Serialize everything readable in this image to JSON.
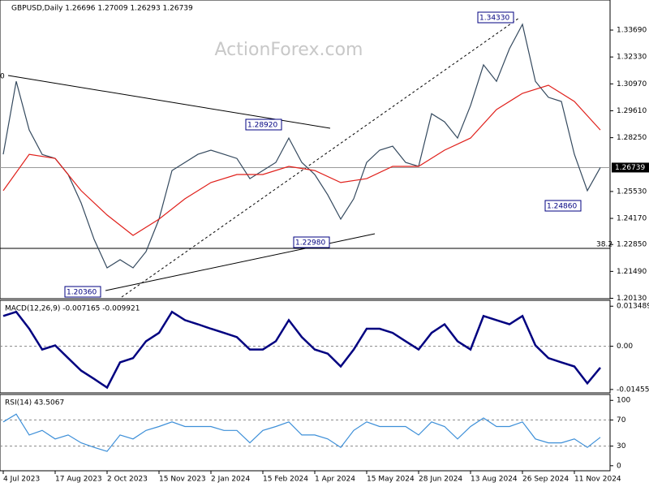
{
  "header": "GBPUSD,Daily  1.26696 1.27009 1.26293 1.26739",
  "watermark": "ActionForex.com",
  "chart_data": [
    {
      "type": "line",
      "title": "GBPUSD,Daily  1.26696 1.27009 1.26293 1.26739",
      "xlim": [
        -2,
        374
      ],
      "ylim": [
        1.2011,
        1.3521
      ],
      "yticks": [
        {
          "value": 1.2013,
          "label": "1.20130"
        },
        {
          "value": 1.2149,
          "label": "1.21490"
        },
        {
          "value": 1.2285,
          "label": "1.22850"
        },
        {
          "value": 1.2417,
          "label": "1.24170"
        },
        {
          "value": 1.2553,
          "label": "1.25530"
        },
        {
          "value": 1.2825,
          "label": "1.28250"
        },
        {
          "value": 1.2961,
          "label": "1.29610"
        },
        {
          "value": 1.3097,
          "label": "1.30970"
        },
        {
          "value": 1.3233,
          "label": "1.32330"
        },
        {
          "value": 1.3369,
          "label": "1.33690"
        }
      ],
      "last_price": {
        "value": 1.26739,
        "label": "1.26739"
      },
      "annotations": [
        "1.34330",
        "1.28920",
        "1.22980",
        "1.20360",
        "1.24860",
        "38.2",
        "0"
      ],
      "series": [
        {
          "color": "#34495e",
          "x": [
            0,
            8,
            16,
            24,
            32,
            40,
            48,
            56,
            64,
            72,
            80,
            88,
            96,
            104,
            112,
            120,
            128,
            136,
            144,
            152,
            160,
            168,
            176,
            184,
            192,
            200,
            208,
            216,
            224,
            232,
            240,
            248,
            256,
            264,
            272,
            280,
            288,
            296,
            304,
            312,
            320,
            328,
            336,
            344,
            352,
            360,
            368
          ],
          "values": [
            1.2741,
            1.311,
            1.2864,
            1.274,
            1.272,
            1.2639,
            1.2495,
            1.2311,
            1.2167,
            1.2208,
            1.2167,
            1.2249,
            1.2413,
            1.2659,
            1.27,
            1.2741,
            1.2762,
            1.2741,
            1.272,
            1.2618,
            1.2659,
            1.27,
            1.2823,
            1.27,
            1.2639,
            1.2536,
            1.2413,
            1.2516,
            1.27,
            1.2762,
            1.2782,
            1.27,
            1.268,
            1.2946,
            1.2905,
            1.2823,
            1.2987,
            1.3193,
            1.311,
            1.3275,
            1.3398,
            1.311,
            1.3029,
            1.3008,
            1.2741,
            1.2557,
            1.2674
          ]
        },
        {
          "color": "#e0201b",
          "x": [
            0,
            16,
            32,
            48,
            64,
            80,
            96,
            112,
            128,
            144,
            160,
            176,
            192,
            208,
            224,
            240,
            256,
            272,
            288,
            304,
            320,
            336,
            352,
            368
          ],
          "values": [
            1.2557,
            1.2741,
            1.272,
            1.2557,
            1.2434,
            1.2331,
            1.2413,
            1.2516,
            1.2598,
            1.2639,
            1.2639,
            1.268,
            1.2659,
            1.2598,
            1.2618,
            1.268,
            1.268,
            1.2762,
            1.2823,
            1.2967,
            1.3049,
            1.309,
            1.3008,
            1.2864
          ]
        }
      ]
    },
    {
      "type": "line",
      "title": "MACD(12,26,9) -0.007165 -0.009921",
      "xlim": [
        -2,
        374
      ],
      "ylim": [
        -0.01569,
        0.01547
      ],
      "yticks": [
        {
          "value": 0.013489,
          "label": "0.013489"
        },
        {
          "value": 0,
          "label": "0.00"
        },
        {
          "value": -0.014554,
          "label": "-0.014554"
        }
      ],
      "series": [
        {
          "color": "#000080",
          "x": [
            0,
            8,
            16,
            24,
            32,
            40,
            48,
            56,
            64,
            72,
            80,
            88,
            96,
            104,
            112,
            120,
            128,
            136,
            144,
            152,
            160,
            168,
            176,
            184,
            192,
            200,
            208,
            216,
            224,
            232,
            240,
            248,
            256,
            264,
            272,
            280,
            288,
            296,
            304,
            312,
            320,
            328,
            336,
            344,
            352,
            360,
            368
          ],
          "values": [
            0.0102,
            0.0116,
            0.0059,
            -0.0011,
            0.0003,
            -0.004,
            -0.0082,
            -0.011,
            -0.0139,
            -0.0054,
            -0.004,
            0.0017,
            0.0045,
            0.0116,
            0.0088,
            0.0074,
            0.0059,
            0.0045,
            0.0031,
            -0.0011,
            -0.0011,
            0.0017,
            0.0088,
            0.0031,
            -0.0011,
            -0.0025,
            -0.0068,
            -0.0011,
            0.0059,
            0.0059,
            0.0045,
            0.0017,
            -0.0011,
            0.0045,
            0.0074,
            0.0017,
            -0.0011,
            0.0102,
            0.0088,
            0.0074,
            0.0102,
            0.0003,
            -0.004,
            -0.0054,
            -0.0068,
            -0.0125,
            -0.0072
          ]
        }
      ]
    },
    {
      "type": "line",
      "title": "RSI(14) 43.5067",
      "xlim": [
        -2,
        374
      ],
      "ylim": [
        -7.7,
        109
      ],
      "yticks": [
        100,
        70,
        30,
        0
      ],
      "dashed_levels": [
        70,
        30
      ],
      "xticks": [
        {
          "value": 0,
          "label": "4 Jul 2023"
        },
        {
          "value": 32,
          "label": "17 Aug 2023"
        },
        {
          "value": 64,
          "label": "2 Oct 2023"
        },
        {
          "value": 96,
          "label": "15 Nov 2023"
        },
        {
          "value": 128,
          "label": "2 Jan 2024"
        },
        {
          "value": 160,
          "label": "15 Feb 2024"
        },
        {
          "value": 192,
          "label": "1 Apr 2024"
        },
        {
          "value": 224,
          "label": "15 May 2024"
        },
        {
          "value": 256,
          "label": "28 Jun 2024"
        },
        {
          "value": 288,
          "label": "13 Aug 2024"
        },
        {
          "value": 320,
          "label": "26 Sep 2024"
        },
        {
          "value": 352,
          "label": "11 Nov 2024"
        }
      ],
      "series": [
        {
          "color": "#3d8fd8",
          "x": [
            0,
            8,
            16,
            24,
            32,
            40,
            48,
            56,
            64,
            72,
            80,
            88,
            96,
            104,
            112,
            120,
            128,
            136,
            144,
            152,
            160,
            168,
            176,
            184,
            192,
            200,
            208,
            216,
            224,
            232,
            240,
            248,
            256,
            264,
            272,
            280,
            288,
            296,
            304,
            312,
            320,
            328,
            336,
            344,
            352,
            360,
            368
          ],
          "values": [
            67,
            79,
            47,
            54,
            41,
            47,
            35,
            28,
            22,
            47,
            41,
            54,
            60,
            67,
            60,
            60,
            60,
            54,
            54,
            35,
            54,
            60,
            67,
            47,
            47,
            41,
            28,
            54,
            67,
            60,
            60,
            60,
            47,
            67,
            60,
            41,
            60,
            73,
            60,
            60,
            67,
            41,
            35,
            35,
            41,
            28,
            43.5
          ]
        }
      ]
    }
  ]
}
